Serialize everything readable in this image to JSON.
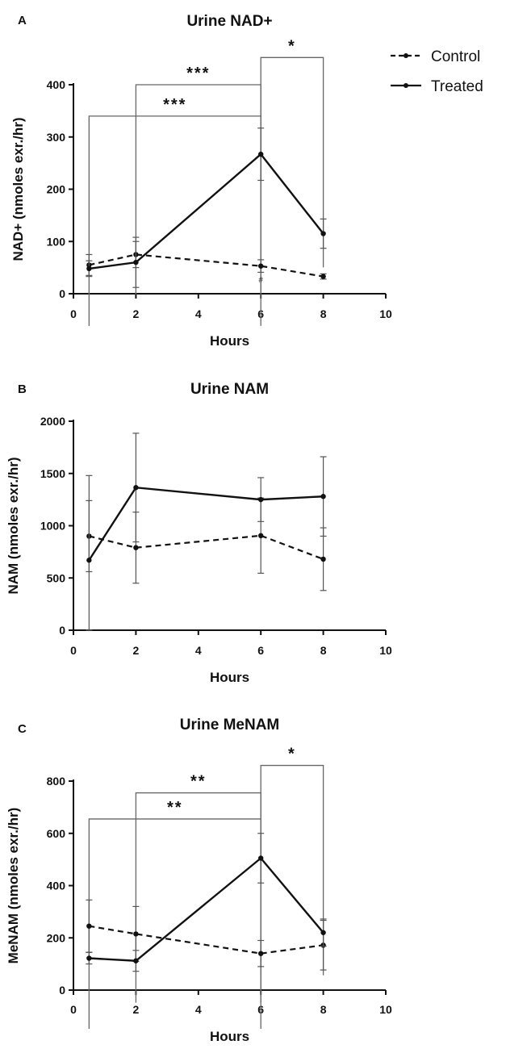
{
  "legend": {
    "control_label": "Control",
    "treated_label": "Treated"
  },
  "chart_data": [
    {
      "type": "line",
      "panel": "A",
      "title": "Urine NAD+",
      "xlabel": "Hours",
      "ylabel": "NAD+ (nmoles exr./hr)",
      "xlim": [
        0,
        10
      ],
      "ylim": [
        0,
        400
      ],
      "xticks": [
        0,
        2,
        4,
        6,
        8,
        10
      ],
      "yticks": [
        0,
        100,
        200,
        300,
        400
      ],
      "legend_position": "top-right",
      "grid": false,
      "series": [
        {
          "name": "Control",
          "style": "dashed",
          "x": [
            0.5,
            2,
            6,
            8
          ],
          "y": [
            55,
            75,
            53,
            33
          ],
          "err": [
            20,
            25,
            12,
            5
          ]
        },
        {
          "name": "Treated",
          "style": "solid",
          "x": [
            0.5,
            2,
            6,
            8
          ],
          "y": [
            48,
            60,
            267,
            115
          ],
          "err": [
            15,
            48,
            50,
            28
          ]
        }
      ],
      "significance": [
        {
          "from": 2,
          "to": 6,
          "label": "***",
          "y": 400
        },
        {
          "from": 0.5,
          "to": 6,
          "label": "***",
          "y": 340
        },
        {
          "from": 6,
          "to": 8,
          "label": "*",
          "y": 452
        }
      ],
      "annotations": [
        {
          "x": 6,
          "y": 22,
          "text": "#"
        }
      ]
    },
    {
      "type": "line",
      "panel": "B",
      "title": "Urine NAM",
      "xlabel": "Hours",
      "ylabel": "NAM (nmoles exr./hr)",
      "xlim": [
        0,
        10
      ],
      "ylim": [
        0,
        2000
      ],
      "xticks": [
        0,
        2,
        4,
        6,
        8,
        10
      ],
      "yticks": [
        0,
        500,
        1000,
        1500,
        2000
      ],
      "grid": false,
      "series": [
        {
          "name": "Control",
          "style": "dashed",
          "x": [
            0.5,
            2,
            6,
            8
          ],
          "y": [
            900,
            790,
            905,
            680
          ],
          "err": [
            340,
            340,
            360,
            300
          ]
        },
        {
          "name": "Treated",
          "style": "solid",
          "x": [
            0.5,
            2,
            6,
            8
          ],
          "y": [
            670,
            1365,
            1250,
            1280
          ],
          "err": [
            810,
            520,
            210,
            380
          ]
        }
      ],
      "significance": [],
      "annotations": []
    },
    {
      "type": "line",
      "panel": "C",
      "title": "Urine MeNAM",
      "xlabel": "Hours",
      "ylabel": "MeNAM (nmoles exr./hr)",
      "xlim": [
        0,
        10
      ],
      "ylim": [
        0,
        800
      ],
      "xticks": [
        0,
        2,
        4,
        6,
        8,
        10
      ],
      "yticks": [
        0,
        200,
        400,
        600,
        800
      ],
      "grid": false,
      "series": [
        {
          "name": "Control",
          "style": "dashed",
          "x": [
            0.5,
            2,
            6,
            8
          ],
          "y": [
            245,
            215,
            140,
            172
          ],
          "err": [
            100,
            105,
            50,
            95
          ]
        },
        {
          "name": "Treated",
          "style": "solid",
          "x": [
            0.5,
            2,
            6,
            8
          ],
          "y": [
            122,
            112,
            505,
            220
          ],
          "err": [
            22,
            40,
            95,
            52
          ]
        }
      ],
      "significance": [
        {
          "from": 2,
          "to": 6,
          "label": "**",
          "y": 755
        },
        {
          "from": 0.5,
          "to": 6,
          "label": "**",
          "y": 655
        },
        {
          "from": 6,
          "to": 8,
          "label": "*",
          "y": 860
        }
      ],
      "annotations": []
    }
  ]
}
